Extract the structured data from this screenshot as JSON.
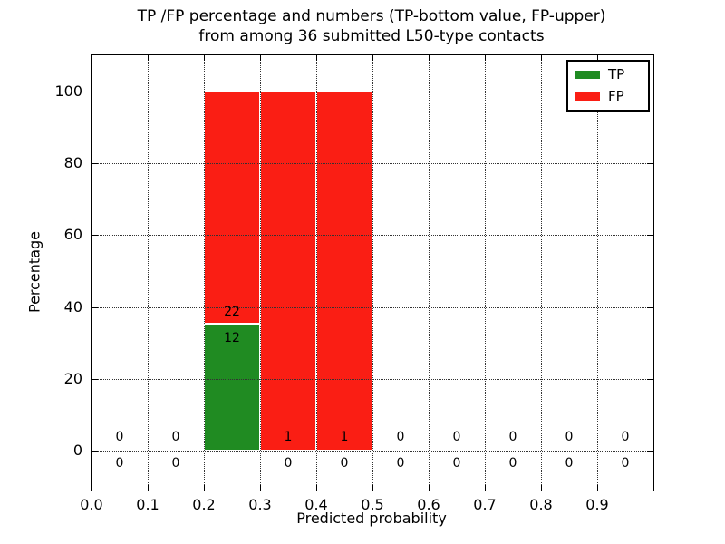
{
  "figure": {
    "title_line1": "TP /FP percentage and numbers (TP-bottom value, FP-upper)",
    "title_line2": "from among 36 submitted L50-type contacts",
    "xlabel": "Predicted probability",
    "ylabel": "Percentage"
  },
  "legend": {
    "items": [
      {
        "label": "TP",
        "color": "#208b22"
      },
      {
        "label": "FP",
        "color": "#fa1e14"
      }
    ]
  },
  "chart_data": {
    "type": "bar",
    "stacked": true,
    "title": "TP /FP percentage and numbers (TP-bottom value, FP-upper) from among 36 submitted L50-type contacts",
    "xlabel": "Predicted probability",
    "ylabel": "Percentage",
    "xlim": [
      0.0,
      1.0
    ],
    "ylim": [
      -11,
      110
    ],
    "grid": true,
    "legend_position": "upper right",
    "total_contacts": 36,
    "bin_width": 0.1,
    "bin_left_edges": [
      0.0,
      0.1,
      0.2,
      0.3,
      0.4,
      0.5,
      0.6,
      0.7,
      0.8,
      0.9
    ],
    "xtick_values": [
      0.0,
      0.1,
      0.2,
      0.3,
      0.4,
      0.5,
      0.6,
      0.7,
      0.8,
      0.9
    ],
    "xtick_labels": [
      "0.0",
      "0.1",
      "0.2",
      "0.3",
      "0.4",
      "0.5",
      "0.6",
      "0.7",
      "0.8",
      "0.9"
    ],
    "ytick_values": [
      0,
      20,
      40,
      60,
      80,
      100
    ],
    "ytick_labels": [
      "0",
      "20",
      "40",
      "60",
      "80",
      "100"
    ],
    "series": [
      {
        "name": "TP",
        "color": "#208b22",
        "counts": [
          0,
          0,
          12,
          0,
          0,
          0,
          0,
          0,
          0,
          0
        ],
        "percent": [
          0,
          0,
          35.3,
          0,
          0,
          0,
          0,
          0,
          0,
          0
        ]
      },
      {
        "name": "FP",
        "color": "#fa1e14",
        "counts": [
          0,
          0,
          22,
          1,
          1,
          0,
          0,
          0,
          0,
          0
        ],
        "percent": [
          0,
          0,
          64.7,
          100,
          100,
          0,
          0,
          0,
          0,
          0
        ]
      }
    ],
    "annotations": [
      {
        "x": 0.05,
        "y": 3.5,
        "text": "0"
      },
      {
        "x": 0.15,
        "y": 3.5,
        "text": "0"
      },
      {
        "x": 0.25,
        "y": 38.3,
        "text": "22"
      },
      {
        "x": 0.25,
        "y": 31.2,
        "text": "12"
      },
      {
        "x": 0.35,
        "y": 3.5,
        "text": "1"
      },
      {
        "x": 0.45,
        "y": 3.5,
        "text": "1"
      },
      {
        "x": 0.55,
        "y": 3.5,
        "text": "0"
      },
      {
        "x": 0.65,
        "y": 3.5,
        "text": "0"
      },
      {
        "x": 0.75,
        "y": 3.5,
        "text": "0"
      },
      {
        "x": 0.85,
        "y": 3.5,
        "text": "0"
      },
      {
        "x": 0.95,
        "y": 3.5,
        "text": "0"
      },
      {
        "x": 0.05,
        "y": -3.8,
        "text": "0"
      },
      {
        "x": 0.15,
        "y": -3.8,
        "text": "0"
      },
      {
        "x": 0.35,
        "y": -3.8,
        "text": "0"
      },
      {
        "x": 0.45,
        "y": -3.8,
        "text": "0"
      },
      {
        "x": 0.55,
        "y": -3.8,
        "text": "0"
      },
      {
        "x": 0.65,
        "y": -3.8,
        "text": "0"
      },
      {
        "x": 0.75,
        "y": -3.8,
        "text": "0"
      },
      {
        "x": 0.85,
        "y": -3.8,
        "text": "0"
      },
      {
        "x": 0.95,
        "y": -3.8,
        "text": "0"
      }
    ]
  }
}
